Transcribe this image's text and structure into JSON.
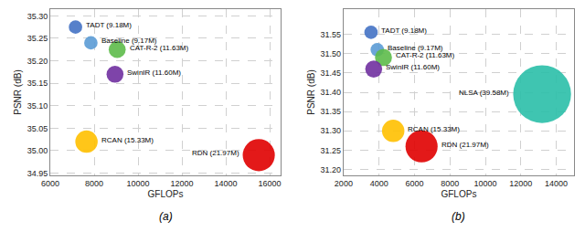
{
  "chart_data": [
    {
      "type": "scatter",
      "title": "(a)",
      "x_label": "GFLOPs",
      "y_label": "PSNR (dB)",
      "xlim": [
        6000,
        16500
      ],
      "ylim": [
        34.945,
        35.315
      ],
      "xticks": [
        6000,
        8000,
        10000,
        12000,
        14000,
        16000
      ],
      "yticks": [
        34.95,
        {
          "value": 35.0,
          "label": "35.00"
        },
        35.05,
        {
          "value": 35.1,
          "label": "35.10"
        },
        35.15,
        {
          "value": 35.2,
          "label": "35.20"
        },
        35.25,
        {
          "value": 35.3,
          "label": "35.30"
        }
      ],
      "grid": true,
      "labels": [
        "TADT (9.18M)",
        "Baseline (9.17M)",
        "CAT-R-2 (11.63M)",
        "SwinIR (11.60M)",
        "RCAN (15.33M)",
        "RDN (21.97M)"
      ],
      "x": [
        7150,
        7850,
        9050,
        8950,
        7650,
        15500
      ],
      "values": [
        35.275,
        35.24,
        35.225,
        35.17,
        35.02,
        34.99
      ],
      "colors": [
        "#4472C4",
        "#5B9BD5",
        "#5DBB4A",
        "#7030A0",
        "#FFC000",
        "#E00000"
      ],
      "sizes": [
        9.18,
        9.17,
        11.63,
        11.6,
        15.33,
        21.97
      ]
    },
    {
      "type": "scatter",
      "title": "(b)",
      "x_label": "GFLOPs",
      "y_label": "PSNR (dB)",
      "xlim": [
        2000,
        15000
      ],
      "ylim": [
        31.185,
        31.615
      ],
      "xticks": [
        2000,
        4000,
        6000,
        8000,
        10000,
        12000,
        14000
      ],
      "yticks": [
        {
          "value": 31.2,
          "label": "31.20"
        },
        31.25,
        {
          "value": 31.3,
          "label": "31.30"
        },
        31.35,
        {
          "value": 31.4,
          "label": "31.40"
        },
        31.45,
        {
          "value": 31.5,
          "label": "31.50"
        },
        31.55
      ],
      "grid": true,
      "labels": [
        "TADT (9.18M)",
        "Baseline (9.17M)",
        "CAT-R-2 (11.63M)",
        "SwinIR (11.60M)",
        "RCAN (15.33M)",
        "RDN (21.97M)",
        "NLSA (39.58M)"
      ],
      "x": [
        3550,
        3900,
        4250,
        3700,
        4800,
        6400,
        13200
      ],
      "values": [
        31.555,
        31.51,
        31.49,
        31.46,
        31.3,
        31.26,
        31.395
      ],
      "colors": [
        "#4472C4",
        "#5B9BD5",
        "#5DBB4A",
        "#7030A0",
        "#FFC000",
        "#E00000",
        "#2ABFA8"
      ],
      "sizes": [
        9.18,
        9.17,
        11.63,
        11.6,
        15.33,
        21.97,
        39.58
      ]
    }
  ]
}
